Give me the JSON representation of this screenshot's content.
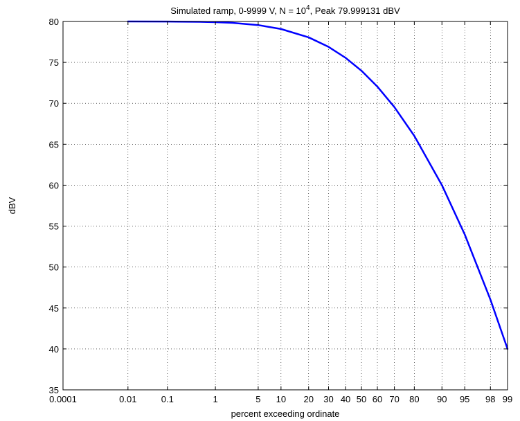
{
  "chart_data": {
    "type": "line",
    "title": {
      "prefix": "Simulated ramp, 0-9999 V, N = 10",
      "superscript": "4",
      "suffix": ", Peak 79.999131 dBV"
    },
    "xlabel": "percent exceeding ordinate",
    "ylabel": "dBV",
    "x_scale": "normal-probability",
    "x_ticks": [
      "0.0001",
      "0.01",
      "0.1",
      "1",
      "5",
      "10",
      "20",
      "30",
      "40",
      "50",
      "60",
      "70",
      "80",
      "90",
      "95",
      "98",
      "99"
    ],
    "y_ticks": [
      "35",
      "40",
      "45",
      "50",
      "55",
      "60",
      "65",
      "70",
      "75",
      "80"
    ],
    "ylim": [
      35,
      80
    ],
    "grid": true,
    "series": [
      {
        "color": "#0000ff",
        "x": [
          0.01,
          0.1,
          0.5,
          1,
          2,
          5,
          10,
          20,
          30,
          40,
          50,
          60,
          70,
          80,
          90,
          95,
          98,
          99
        ],
        "y": [
          79.999,
          79.99,
          79.96,
          79.91,
          79.83,
          79.56,
          79.08,
          78.06,
          76.9,
          75.56,
          73.98,
          72.04,
          69.54,
          66.02,
          60.0,
          53.98,
          46.02,
          40.0
        ]
      }
    ]
  }
}
